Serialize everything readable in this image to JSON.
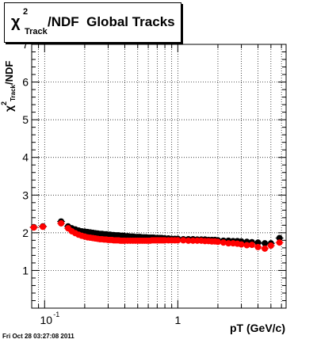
{
  "chart_data": {
    "type": "scatter",
    "title": {
      "chi": "χ",
      "superscript": "2",
      "subscript": "Track",
      "rest": "/NDF  Global Tracks"
    },
    "xlabel": "pT (GeV/c)",
    "ylabel": {
      "chi": "χ",
      "superscript": "2",
      "subscript": "Track",
      "rest": "/NDF"
    },
    "x_scale": "log",
    "xlim": [
      0.08,
      6.5
    ],
    "ylim": [
      0,
      7
    ],
    "grid": true,
    "x_major_ticks": [
      {
        "value": 0.1,
        "base": "10",
        "exp": "-1"
      },
      {
        "value": 1,
        "label": "1"
      }
    ],
    "y_ticks": [
      0,
      1,
      2,
      3,
      4,
      5,
      6,
      7
    ],
    "y_tick_labels": [
      "",
      "1",
      "2",
      "3",
      "4",
      "5",
      "6",
      "7"
    ],
    "series": [
      {
        "color": "#000000",
        "x": [
          0.083,
          0.097,
          0.133,
          0.15,
          0.16,
          0.17,
          0.18,
          0.19,
          0.2,
          0.21,
          0.22,
          0.23,
          0.24,
          0.25,
          0.26,
          0.27,
          0.28,
          0.29,
          0.3,
          0.31,
          0.32,
          0.33,
          0.34,
          0.35,
          0.36,
          0.37,
          0.38,
          0.39,
          0.4,
          0.42,
          0.44,
          0.46,
          0.48,
          0.5,
          0.52,
          0.54,
          0.56,
          0.58,
          0.6,
          0.62,
          0.64,
          0.66,
          0.68,
          0.7,
          0.72,
          0.74,
          0.76,
          0.78,
          0.8,
          0.85,
          0.9,
          0.95,
          1.0,
          1.1,
          1.2,
          1.3,
          1.4,
          1.5,
          1.6,
          1.7,
          1.8,
          1.9,
          2.0,
          2.2,
          2.4,
          2.6,
          2.8,
          3.0,
          3.3,
          3.6,
          4.0,
          4.5,
          5.0,
          5.8
        ],
        "y": [
          2.15,
          2.17,
          2.3,
          2.17,
          2.12,
          2.09,
          2.06,
          2.04,
          2.03,
          2.02,
          2.01,
          2.0,
          1.99,
          1.98,
          1.97,
          1.97,
          1.96,
          1.96,
          1.95,
          1.95,
          1.94,
          1.94,
          1.93,
          1.93,
          1.93,
          1.92,
          1.92,
          1.92,
          1.91,
          1.91,
          1.9,
          1.9,
          1.89,
          1.89,
          1.89,
          1.88,
          1.88,
          1.88,
          1.87,
          1.87,
          1.87,
          1.87,
          1.86,
          1.86,
          1.86,
          1.86,
          1.86,
          1.85,
          1.85,
          1.85,
          1.84,
          1.84,
          1.84,
          1.83,
          1.83,
          1.83,
          1.82,
          1.82,
          1.82,
          1.81,
          1.81,
          1.81,
          1.8,
          1.79,
          1.79,
          1.78,
          1.78,
          1.77,
          1.76,
          1.75,
          1.74,
          1.72,
          1.72,
          1.86
        ]
      },
      {
        "color": "#ff0000",
        "x": [
          0.083,
          0.097,
          0.133,
          0.15,
          0.16,
          0.17,
          0.18,
          0.19,
          0.2,
          0.21,
          0.22,
          0.23,
          0.24,
          0.25,
          0.26,
          0.27,
          0.28,
          0.29,
          0.3,
          0.31,
          0.32,
          0.33,
          0.34,
          0.35,
          0.36,
          0.37,
          0.38,
          0.39,
          0.4,
          0.42,
          0.44,
          0.46,
          0.48,
          0.5,
          0.52,
          0.54,
          0.56,
          0.58,
          0.6,
          0.62,
          0.64,
          0.66,
          0.68,
          0.7,
          0.72,
          0.74,
          0.76,
          0.78,
          0.8,
          0.85,
          0.9,
          0.95,
          1.0,
          1.1,
          1.2,
          1.3,
          1.4,
          1.5,
          1.6,
          1.7,
          1.8,
          1.9,
          2.0,
          2.2,
          2.4,
          2.6,
          2.8,
          3.0,
          3.3,
          3.6,
          4.0,
          4.5,
          5.0,
          5.8
        ],
        "y": [
          2.14,
          2.16,
          2.25,
          2.12,
          2.04,
          1.99,
          1.95,
          1.92,
          1.9,
          1.88,
          1.87,
          1.86,
          1.85,
          1.84,
          1.83,
          1.83,
          1.82,
          1.82,
          1.81,
          1.81,
          1.81,
          1.8,
          1.8,
          1.8,
          1.8,
          1.79,
          1.79,
          1.79,
          1.79,
          1.79,
          1.79,
          1.79,
          1.79,
          1.79,
          1.79,
          1.79,
          1.79,
          1.79,
          1.79,
          1.79,
          1.8,
          1.8,
          1.8,
          1.8,
          1.8,
          1.8,
          1.8,
          1.8,
          1.8,
          1.8,
          1.8,
          1.8,
          1.8,
          1.8,
          1.79,
          1.79,
          1.79,
          1.79,
          1.78,
          1.78,
          1.77,
          1.77,
          1.76,
          1.74,
          1.72,
          1.72,
          1.71,
          1.69,
          1.67,
          1.68,
          1.62,
          1.58,
          1.66,
          1.74
        ]
      }
    ]
  },
  "timestamp": "Fri Oct 28 03:27:08 2011"
}
